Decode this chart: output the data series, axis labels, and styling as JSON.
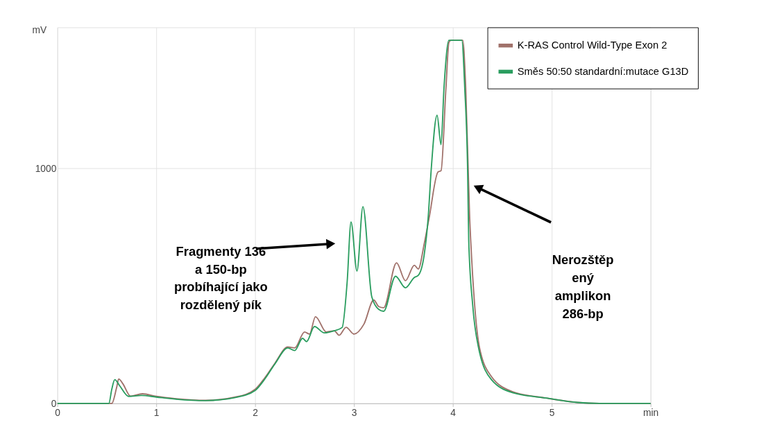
{
  "chart_data": {
    "type": "line",
    "ylabel": "mV",
    "xlim": [
      0,
      6
    ],
    "xticks": [
      0,
      1,
      2,
      3,
      4,
      5,
      {
        "value": 6,
        "label": "min"
      }
    ],
    "ylim": [
      0,
      1600
    ],
    "yticks": [
      0,
      1000
    ],
    "grid": true,
    "legend": "top right",
    "line_style": "solid",
    "marker": "none",
    "series": [
      {
        "name": "K-RAS Control Wild-Type Exon 2",
        "color": "#a0716a",
        "x": [
          0,
          0.55,
          0.6,
          0.62,
          0.66,
          0.74,
          0.86,
          1.0,
          1.2,
          1.5,
          1.8,
          2.0,
          2.1,
          2.2,
          2.33,
          2.4,
          2.5,
          2.55,
          2.61,
          2.72,
          2.8,
          2.85,
          2.92,
          3.0,
          3.1,
          3.2,
          3.25,
          3.3,
          3.43,
          3.52,
          3.61,
          3.65,
          3.71,
          3.76,
          3.85,
          3.88,
          3.93,
          3.96,
          3.98,
          4.1,
          4.13,
          4.17,
          4.18,
          4.22,
          4.27,
          4.39,
          4.61,
          4.94,
          5.26,
          5.48,
          6.0
        ],
        "values": [
          0,
          0,
          70,
          104,
          85,
          31,
          41,
          30,
          20,
          13,
          27,
          60,
          110,
          171,
          240,
          236,
          304,
          295,
          369,
          304,
          309,
          290,
          324,
          295,
          337,
          440,
          412,
          407,
          598,
          522,
          588,
          572,
          679,
          790,
          985,
          990,
          1342,
          1536,
          1545,
          1545,
          1342,
          787,
          697,
          420,
          236,
          114,
          49,
          23,
          4,
          0,
          0
        ]
      },
      {
        "name": "Směs 50:50 standardní:mutace G13D",
        "color": "#2a9d5f",
        "x": [
          0,
          0.52,
          0.55,
          0.58,
          0.63,
          0.72,
          0.85,
          1.0,
          1.2,
          1.5,
          1.8,
          2.0,
          2.1,
          2.2,
          2.33,
          2.4,
          2.48,
          2.52,
          2.6,
          2.7,
          2.8,
          2.88,
          2.93,
          2.97,
          3.03,
          3.09,
          3.18,
          3.25,
          3.3,
          3.42,
          3.52,
          3.61,
          3.65,
          3.71,
          3.75,
          3.78,
          3.84,
          3.88,
          3.91,
          3.96,
          4.09,
          4.12,
          4.15,
          4.16,
          4.2,
          4.26,
          4.39,
          4.61,
          4.94,
          5.26,
          5.48,
          6.0
        ],
        "values": [
          0,
          0,
          60,
          101,
          75,
          30,
          34,
          27,
          18,
          12,
          25,
          55,
          105,
          168,
          236,
          225,
          277,
          263,
          327,
          300,
          309,
          323,
          513,
          772,
          563,
          837,
          453,
          400,
          392,
          541,
          492,
          536,
          545,
          633,
          790,
          990,
          1226,
          1101,
          1342,
          1545,
          1545,
          1342,
          971,
          697,
          420,
          236,
          101,
          45,
          23,
          4,
          0,
          0
        ]
      }
    ],
    "annotations": [
      "Fragmenty 136\na 150-bp\nprobíhající jako\nrozdělený pík",
      "Nerozštěp\nený\namplikon\n286-bp"
    ]
  }
}
